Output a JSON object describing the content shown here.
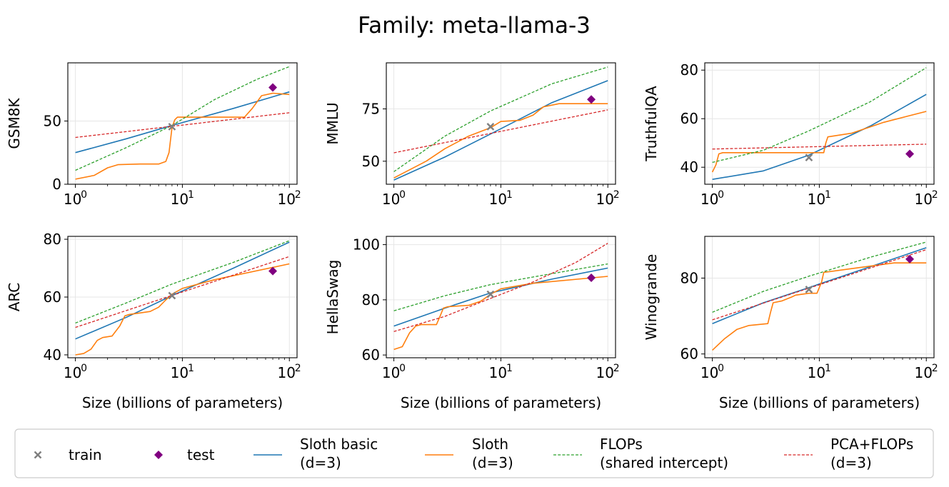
{
  "figure_title": "Family: meta-llama-3",
  "x_axis_label": "Size (billions of parameters)",
  "colors": {
    "train": "#7f7f7f",
    "test": "#800080",
    "sloth_basic": "#1f77b4",
    "sloth": "#ff7f0e",
    "flops": "#2ca02c",
    "pca_flops": "#d62728",
    "grid": "#e6e6e6"
  },
  "legend": [
    {
      "key": "train",
      "label": [
        "train"
      ],
      "marker": "x"
    },
    {
      "key": "test",
      "label": [
        "test"
      ],
      "marker": "diamond"
    },
    {
      "key": "sloth_basic",
      "label": [
        "Sloth basic",
        "(d=3)"
      ],
      "line": "solid"
    },
    {
      "key": "sloth",
      "label": [
        "Sloth",
        "(d=3)"
      ],
      "line": "solid"
    },
    {
      "key": "flops",
      "label": [
        "FLOPs",
        "(shared intercept)"
      ],
      "line": "dashed"
    },
    {
      "key": "pca_flops",
      "label": [
        "PCA+FLOPs",
        "(d=3)"
      ],
      "line": "dashed"
    }
  ],
  "chart_data": [
    {
      "type": "line",
      "ylabel": "GSM8K",
      "xscale": "log",
      "xlim": [
        0.85,
        118
      ],
      "ylim": [
        0,
        96
      ],
      "xticks": [
        {
          "v": 1,
          "label": "10",
          "exp": "0"
        },
        {
          "v": 10,
          "label": "10",
          "exp": "1"
        },
        {
          "v": 100,
          "label": "10",
          "exp": "2"
        }
      ],
      "yticks": [
        {
          "v": 0,
          "label": "0"
        },
        {
          "v": 50,
          "label": "50"
        }
      ],
      "train": [
        {
          "x": 8,
          "y": 45.5
        }
      ],
      "test": [
        {
          "x": 70,
          "y": 76.5
        }
      ],
      "series": [
        {
          "key": "sloth_basic",
          "x": [
            1,
            3,
            8,
            30,
            100
          ],
          "y": [
            25,
            36,
            46.5,
            60,
            73
          ]
        },
        {
          "key": "sloth",
          "x": [
            1,
            1.5,
            2,
            2.5,
            4,
            6,
            7,
            7.5,
            8,
            8.5,
            9,
            10,
            20,
            38,
            45,
            55,
            70,
            100
          ],
          "y": [
            4,
            7,
            13,
            15.5,
            16,
            16,
            18,
            25,
            45,
            51,
            53,
            53,
            53,
            53,
            60,
            70,
            72,
            71
          ]
        },
        {
          "key": "flops",
          "x": [
            1,
            3,
            8,
            20,
            50,
            100
          ],
          "y": [
            11,
            29,
            46.5,
            67,
            83,
            93
          ]
        },
        {
          "key": "pca_flops",
          "x": [
            1,
            100
          ],
          "y": [
            37,
            56.5
          ]
        }
      ]
    },
    {
      "type": "line",
      "ylabel": "MMLU",
      "xscale": "log",
      "xlim": [
        0.85,
        118
      ],
      "ylim": [
        39,
        97
      ],
      "xticks": [
        {
          "v": 1,
          "label": "10",
          "exp": "0"
        },
        {
          "v": 10,
          "label": "10",
          "exp": "1"
        },
        {
          "v": 100,
          "label": "10",
          "exp": "2"
        }
      ],
      "yticks": [
        {
          "v": 50,
          "label": "50"
        },
        {
          "v": 75,
          "label": "75"
        }
      ],
      "train": [
        {
          "x": 8,
          "y": 66.5
        }
      ],
      "test": [
        {
          "x": 70,
          "y": 79.5
        }
      ],
      "series": [
        {
          "key": "sloth_basic",
          "x": [
            1,
            3,
            8,
            30,
            100
          ],
          "y": [
            41,
            52,
            63,
            78,
            88.5
          ]
        },
        {
          "key": "sloth",
          "x": [
            1,
            2,
            3,
            5,
            8,
            10,
            15,
            20,
            25,
            35,
            100
          ],
          "y": [
            42,
            50,
            56,
            62,
            66,
            69,
            69.5,
            72,
            76,
            77.5,
            77.5
          ]
        },
        {
          "key": "flops",
          "x": [
            1,
            3,
            8,
            30,
            100
          ],
          "y": [
            45,
            62,
            74,
            87,
            95
          ]
        },
        {
          "key": "pca_flops",
          "x": [
            1,
            100
          ],
          "y": [
            54,
            74.5
          ]
        }
      ]
    },
    {
      "type": "line",
      "ylabel": "TruthfulQA",
      "xscale": "log",
      "xlim": [
        0.85,
        118
      ],
      "ylim": [
        33,
        83
      ],
      "xticks": [
        {
          "v": 1,
          "label": "10",
          "exp": "0"
        },
        {
          "v": 10,
          "label": "10",
          "exp": "1"
        },
        {
          "v": 100,
          "label": "10",
          "exp": "2"
        }
      ],
      "yticks": [
        {
          "v": 40,
          "label": "40"
        },
        {
          "v": 60,
          "label": "60"
        },
        {
          "v": 80,
          "label": "80"
        }
      ],
      "train": [
        {
          "x": 8,
          "y": 44
        }
      ],
      "test": [
        {
          "x": 70,
          "y": 45.5
        }
      ],
      "series": [
        {
          "key": "sloth_basic",
          "x": [
            1,
            3,
            8,
            30,
            100
          ],
          "y": [
            35,
            38.5,
            45,
            57,
            70
          ]
        },
        {
          "key": "sloth",
          "x": [
            1,
            1.08,
            1.15,
            1.25,
            11,
            11.5,
            12,
            20,
            40,
            100
          ],
          "y": [
            38,
            41,
            45.5,
            46,
            46,
            50,
            52.5,
            54,
            58.5,
            63
          ]
        },
        {
          "key": "flops",
          "x": [
            1,
            3,
            8,
            30,
            100
          ],
          "y": [
            42,
            47,
            55,
            67,
            81
          ]
        },
        {
          "key": "pca_flops",
          "x": [
            1,
            100
          ],
          "y": [
            47.5,
            49.5
          ]
        }
      ]
    },
    {
      "type": "line",
      "ylabel": "ARC",
      "xscale": "log",
      "xlim": [
        0.85,
        118
      ],
      "ylim": [
        39,
        81
      ],
      "xticks": [
        {
          "v": 1,
          "label": "10",
          "exp": "0"
        },
        {
          "v": 10,
          "label": "10",
          "exp": "1"
        },
        {
          "v": 100,
          "label": "10",
          "exp": "2"
        }
      ],
      "yticks": [
        {
          "v": 40,
          "label": "40"
        },
        {
          "v": 60,
          "label": "60"
        },
        {
          "v": 80,
          "label": "80"
        }
      ],
      "train": [
        {
          "x": 8,
          "y": 60.5
        }
      ],
      "test": [
        {
          "x": 70,
          "y": 69
        }
      ],
      "series": [
        {
          "key": "sloth_basic",
          "x": [
            1,
            3,
            8,
            30,
            100
          ],
          "y": [
            45.5,
            53,
            60.5,
            70,
            79
          ]
        },
        {
          "key": "sloth",
          "x": [
            1,
            1.2,
            1.4,
            1.6,
            1.8,
            2.2,
            2.6,
            2.9,
            3.2,
            4,
            5,
            6,
            7,
            8,
            10,
            20,
            100
          ],
          "y": [
            40,
            40.5,
            42,
            45,
            46,
            46.5,
            50,
            53.5,
            54,
            54.5,
            55,
            56.5,
            59,
            61,
            63,
            66,
            71.5
          ]
        },
        {
          "key": "flops",
          "x": [
            1,
            3,
            8,
            30,
            100
          ],
          "y": [
            51,
            58,
            64.5,
            72,
            79.5
          ]
        },
        {
          "key": "pca_flops",
          "x": [
            1,
            100
          ],
          "y": [
            49.5,
            74
          ]
        }
      ]
    },
    {
      "type": "line",
      "ylabel": "HellaSwag",
      "xscale": "log",
      "xlim": [
        0.85,
        118
      ],
      "ylim": [
        59,
        103
      ],
      "xticks": [
        {
          "v": 1,
          "label": "10",
          "exp": "0"
        },
        {
          "v": 10,
          "label": "10",
          "exp": "1"
        },
        {
          "v": 100,
          "label": "10",
          "exp": "2"
        }
      ],
      "yticks": [
        {
          "v": 60,
          "label": "60"
        },
        {
          "v": 80,
          "label": "80"
        },
        {
          "v": 100,
          "label": "100"
        }
      ],
      "train": [
        {
          "x": 8,
          "y": 82
        }
      ],
      "test": [
        {
          "x": 70,
          "y": 88
        }
      ],
      "series": [
        {
          "key": "sloth_basic",
          "x": [
            1,
            3,
            8,
            30,
            100
          ],
          "y": [
            70.5,
            77,
            82.5,
            87.5,
            91.5
          ]
        },
        {
          "key": "sloth",
          "x": [
            1,
            1.2,
            1.4,
            1.6,
            1.8,
            2.5,
            2.7,
            2.9,
            3.2,
            5,
            6.5,
            8,
            10,
            20,
            100
          ],
          "y": [
            62,
            63,
            68,
            70.5,
            71,
            71,
            74,
            77,
            77.5,
            78,
            79.5,
            82,
            84,
            86,
            88.5
          ]
        },
        {
          "key": "flops",
          "x": [
            1,
            3,
            8,
            30,
            100
          ],
          "y": [
            76,
            81.5,
            85.5,
            89.5,
            93
          ]
        },
        {
          "key": "pca_flops",
          "x": [
            1,
            3,
            8,
            20,
            50,
            100
          ],
          "y": [
            68.5,
            74,
            80.5,
            86.5,
            93.5,
            100.5
          ]
        }
      ]
    },
    {
      "type": "line",
      "ylabel": "Winogrande",
      "xscale": "log",
      "xlim": [
        0.85,
        118
      ],
      "ylim": [
        59,
        91
      ],
      "xticks": [
        {
          "v": 1,
          "label": "10",
          "exp": "0"
        },
        {
          "v": 10,
          "label": "10",
          "exp": "1"
        },
        {
          "v": 100,
          "label": "10",
          "exp": "2"
        }
      ],
      "yticks": [
        {
          "v": 60,
          "label": "60"
        },
        {
          "v": 80,
          "label": "80"
        }
      ],
      "train": [
        {
          "x": 8,
          "y": 77
        }
      ],
      "test": [
        {
          "x": 70,
          "y": 85
        }
      ],
      "series": [
        {
          "key": "sloth_basic",
          "x": [
            1,
            3,
            8,
            30,
            100
          ],
          "y": [
            68,
            73.5,
            77.5,
            83,
            88
          ]
        },
        {
          "key": "sloth",
          "x": [
            1,
            1.3,
            1.7,
            2.2,
            3.3,
            3.5,
            3.7,
            4.5,
            5.5,
            6,
            8,
            9.5,
            10.5,
            11,
            20,
            50,
            100
          ],
          "y": [
            61,
            64,
            66.5,
            67.5,
            68,
            71,
            73.5,
            74,
            75,
            75.5,
            76,
            76,
            79,
            81.5,
            82.5,
            84,
            84
          ]
        },
        {
          "key": "flops",
          "x": [
            1,
            3,
            8,
            30,
            100
          ],
          "y": [
            71,
            76.5,
            80.5,
            85.5,
            89.5
          ]
        },
        {
          "key": "pca_flops",
          "x": [
            1,
            100
          ],
          "y": [
            69,
            87.5
          ]
        }
      ]
    }
  ]
}
